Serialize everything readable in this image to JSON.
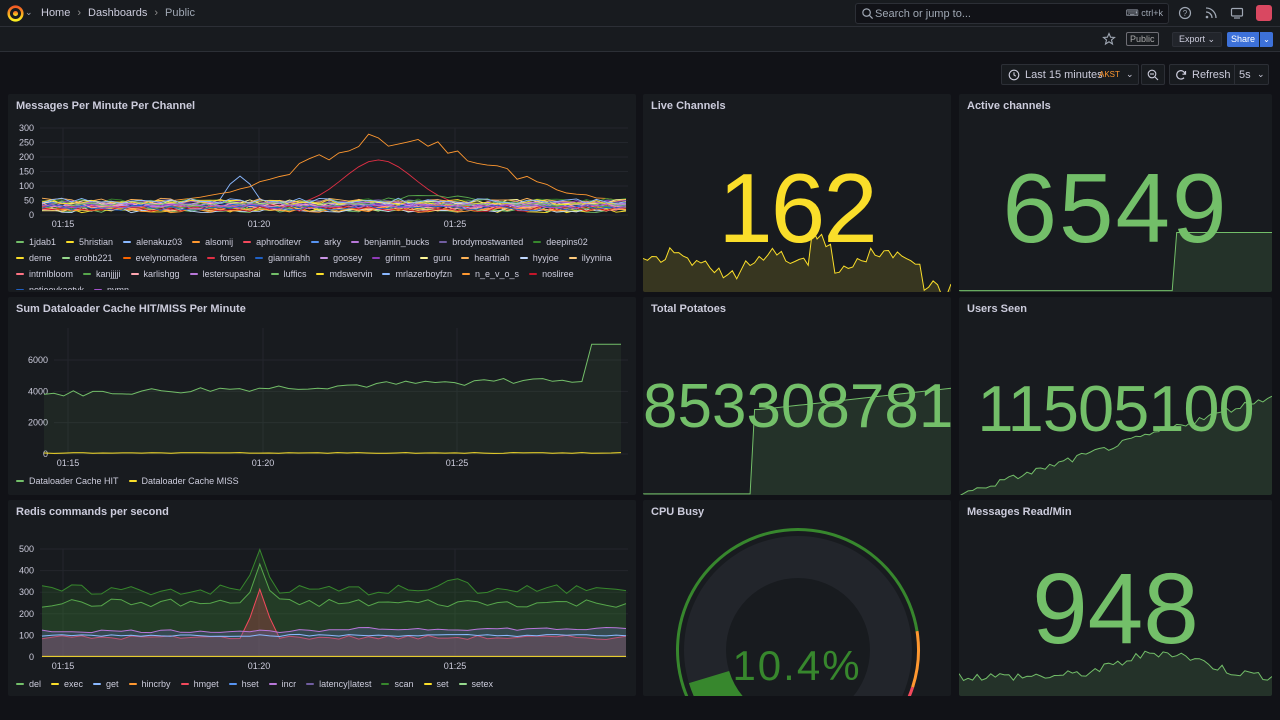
{
  "topbar": {
    "breadcrumbs": [
      "Home",
      "Dashboards",
      "Public"
    ],
    "search_placeholder": "Search or jump to...",
    "search_shortcut": "ctrl+k",
    "icons": [
      "grafana-logo-icon",
      "help-icon",
      "news-icon",
      "tv-mode-icon",
      "user-avatar"
    ]
  },
  "toolbar": {
    "public_tag": "Public",
    "export_label": "Export",
    "share_label": "Share"
  },
  "time_controls": {
    "range_label": "Last 15 minutes",
    "timezone": "AKST",
    "refresh_label": "Refresh",
    "refresh_interval": "5s"
  },
  "colors": {
    "green": "#73bf69",
    "yellow": "#fade2a",
    "orange": "#ff9830",
    "red": "#f2495c",
    "blue": "#5794f2",
    "purple": "#b877d9",
    "background": "#111217",
    "panel": "#181b1f"
  },
  "panels": {
    "messages_per_minute": {
      "title": "Messages Per Minute Per Channel",
      "y_ticks": [
        "300",
        "250",
        "200",
        "150",
        "100",
        "50",
        "0"
      ],
      "x_ticks": [
        "01:15",
        "01:20",
        "01:25"
      ],
      "legend": [
        {
          "name": "1jdab1",
          "color": "#73bf69"
        },
        {
          "name": "5hristian",
          "color": "#fade2a"
        },
        {
          "name": "alenakuz03",
          "color": "#8ab8ff"
        },
        {
          "name": "alsomij",
          "color": "#ff9830"
        },
        {
          "name": "aphroditevr",
          "color": "#f2495c"
        },
        {
          "name": "arky",
          "color": "#5794f2"
        },
        {
          "name": "benjamin_bucks",
          "color": "#b877d9"
        },
        {
          "name": "brodymostwanted",
          "color": "#705da0"
        },
        {
          "name": "deepins02",
          "color": "#37872d"
        },
        {
          "name": "deme",
          "color": "#fade2a"
        },
        {
          "name": "erobb221",
          "color": "#96d98d"
        },
        {
          "name": "evelynomadera",
          "color": "#fa6400"
        },
        {
          "name": "forsen",
          "color": "#e02f44"
        },
        {
          "name": "giannirahh",
          "color": "#1f60c4"
        },
        {
          "name": "goosey",
          "color": "#ca95e5"
        },
        {
          "name": "grimm",
          "color": "#8f3bb8"
        },
        {
          "name": "guru",
          "color": "#fff899"
        },
        {
          "name": "heartriah",
          "color": "#ffb357"
        },
        {
          "name": "hyyjoe",
          "color": "#c0d8ff"
        },
        {
          "name": "ilyynina",
          "color": "#ffcb7d"
        },
        {
          "name": "intrnlbloom",
          "color": "#ff7383"
        },
        {
          "name": "kanjjjji",
          "color": "#56a64b"
        },
        {
          "name": "karlishgg",
          "color": "#ffa6b0"
        },
        {
          "name": "lestersupashai",
          "color": "#b877d9"
        },
        {
          "name": "luffics",
          "color": "#73bf69"
        },
        {
          "name": "mdswervin",
          "color": "#fade2a"
        },
        {
          "name": "mrlazerboyfzn",
          "color": "#8ab8ff"
        },
        {
          "name": "n_e_v_o_s",
          "color": "#ff9830"
        },
        {
          "name": "nosliree",
          "color": "#c4162a"
        },
        {
          "name": "notjoeykaotyk",
          "color": "#1f60c4"
        },
        {
          "name": "nymn",
          "color": "#a352cc"
        }
      ]
    },
    "live_channels": {
      "title": "Live Channels",
      "value": "162"
    },
    "active_channels": {
      "title": "Active channels",
      "value": "6549"
    },
    "dataloader": {
      "title": "Sum Dataloader Cache HIT/MISS Per Minute",
      "y_ticks": [
        "6000",
        "4000",
        "2000",
        "0"
      ],
      "x_ticks": [
        "01:15",
        "01:20",
        "01:25"
      ],
      "legend": [
        {
          "name": "Dataloader Cache HIT",
          "color": "#73bf69"
        },
        {
          "name": "Dataloader Cache MISS",
          "color": "#fade2a"
        }
      ]
    },
    "total_potatoes": {
      "title": "Total Potatoes",
      "value": "853308781"
    },
    "users_seen": {
      "title": "Users Seen",
      "value": "11505100"
    },
    "redis": {
      "title": "Redis commands per second",
      "y_ticks": [
        "500",
        "400",
        "300",
        "200",
        "100",
        "0"
      ],
      "x_ticks": [
        "01:15",
        "01:20",
        "01:25"
      ],
      "legend": [
        {
          "name": "del",
          "color": "#73bf69"
        },
        {
          "name": "exec",
          "color": "#fade2a"
        },
        {
          "name": "get",
          "color": "#8ab8ff"
        },
        {
          "name": "hincrby",
          "color": "#ff9830"
        },
        {
          "name": "hmget",
          "color": "#f2495c"
        },
        {
          "name": "hset",
          "color": "#5794f2"
        },
        {
          "name": "incr",
          "color": "#b877d9"
        },
        {
          "name": "latency|latest",
          "color": "#705da0"
        },
        {
          "name": "scan",
          "color": "#37872d"
        },
        {
          "name": "set",
          "color": "#fade2a"
        },
        {
          "name": "setex",
          "color": "#96d98d"
        }
      ]
    },
    "cpu_busy": {
      "title": "CPU Busy",
      "value": "10.4%",
      "fraction": 0.104
    },
    "messages_read": {
      "title": "Messages Read/Min",
      "value": "948"
    }
  }
}
